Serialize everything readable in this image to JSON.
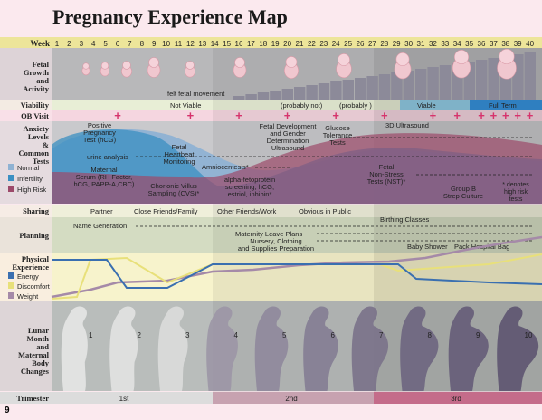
{
  "title": "Pregnancy Experience Map",
  "page_number": "9",
  "weeks": {
    "label": "Week",
    "numbers": [
      "1",
      "2",
      "3",
      "4",
      "5",
      "6",
      "7",
      "8",
      "9",
      "10",
      "11",
      "12",
      "13",
      "14",
      "15",
      "16",
      "17",
      "18",
      "19",
      "20",
      "21",
      "22",
      "23",
      "24",
      "25",
      "26",
      "27",
      "28",
      "29",
      "30",
      "31",
      "32",
      "33",
      "34",
      "35",
      "36",
      "37",
      "38",
      "39",
      "40"
    ]
  },
  "rows": {
    "fetal": "Fetal Growth and Activity",
    "viability": "Viability",
    "ob": "OB Visit",
    "anxiety": "Anxiety Levels & Common Tests",
    "sharing": "Sharing",
    "planning": "Planning",
    "physical": "Physical Experience",
    "lunar": "Lunar Month and Maternal Body Changes",
    "trimester": "Trimester"
  },
  "fetal_annotation": "felt fetal movement",
  "viability": {
    "not_viable": "Not Viable",
    "probably_not": "(probably not)",
    "probably": "(probably )",
    "viable": "Viable",
    "full_term": "Full Term"
  },
  "anxiety_legend": {
    "normal": "Normal",
    "infertility": "Infertility",
    "high_risk": "High Risk"
  },
  "tests": {
    "positive": "Positive Pregnancy Test (hCG)",
    "urine": "urine analysis",
    "serum": "Maternal Serum (RH Factor, hCG, PAPP-A,CBC)",
    "heartbeat": "Fetal Heartbeat Monitoring",
    "cvs": "Chorionic Villus Sampling (CVS)*",
    "amnio": "Amniocentesis*",
    "afp": "alpha-fetoprotein screening, hCG, estriol, inhibin*",
    "gender": "Fetal Development and Gender Determination Ultrasound",
    "glucose": "Glucose Tolerance Tests",
    "us3d": "3D Ultrasound",
    "nst": "Fetal Non-Stress Tests (NST)*",
    "gbs": "Group B Strep Culture",
    "note": "* denotes high risk tests"
  },
  "sharing": [
    "Partner",
    "Close Friends/Family",
    "Other Friends/Work",
    "Obvious in Public"
  ],
  "planning": {
    "names": "Name Generation",
    "leave": "Maternity Leave Plans",
    "nursery": "Nursery, Clothing and Supplies Preparation",
    "birth": "Birthing Classes",
    "shower": "Baby Shower",
    "bag": "Pack Hospital Bag"
  },
  "physical_legend": {
    "energy": "Energy",
    "discomfort": "Discomfort",
    "weight": "Weight"
  },
  "months": [
    "1",
    "2",
    "3",
    "4",
    "5",
    "6",
    "7",
    "8",
    "9",
    "10"
  ],
  "trimesters": [
    "1st",
    "2nd",
    "3rd"
  ],
  "colors": {
    "energy": "#3a6fb0",
    "discomfort": "#e8e07a",
    "weight": "#a58aa8",
    "normal": "#8fb2d3",
    "infertility": "#3a8fc2",
    "high_risk": "#9c4a6a",
    "ob": "#d6336c"
  }
}
